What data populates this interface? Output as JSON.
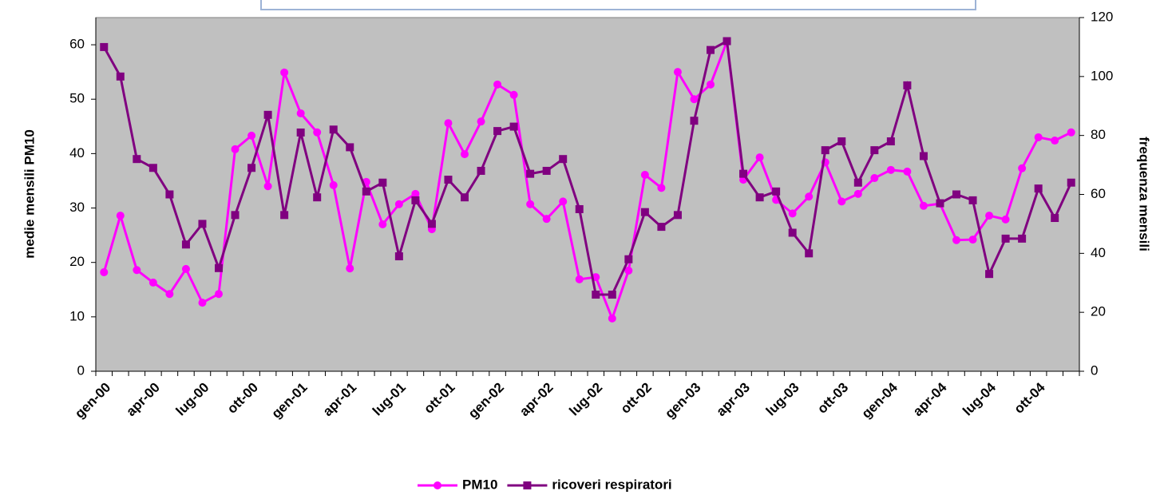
{
  "chart_data": {
    "type": "line",
    "y_label": "medie mensili PM10",
    "y2_label": "frequenza mensili",
    "categories": [
      "gen-00",
      null,
      null,
      "apr-00",
      null,
      null,
      "lug-00",
      null,
      null,
      "ott-00",
      null,
      null,
      "gen-01",
      null,
      null,
      "apr-01",
      null,
      null,
      "lug-01",
      null,
      null,
      "ott-01",
      null,
      null,
      "gen-02",
      null,
      null,
      "apr-02",
      null,
      null,
      "lug-02",
      null,
      null,
      "ott-02",
      null,
      null,
      "gen-03",
      null,
      null,
      "apr-03",
      null,
      null,
      "lug-03",
      null,
      null,
      "ott-03",
      null,
      null,
      "gen-04",
      null,
      null,
      "apr-04",
      null,
      null,
      "lug-04",
      null,
      null,
      "ott-04",
      null,
      null
    ],
    "series": [
      {
        "name": "PM10",
        "color": "#ff00ff",
        "marker": "circle",
        "values": [
          18.2,
          28.6,
          18.6,
          16.3,
          14.2,
          18.8,
          12.6,
          14.2,
          40.8,
          43.3,
          34,
          54.9,
          47.4,
          43.9,
          34.2,
          18.9,
          34.8,
          27,
          30.7,
          32.6,
          26.1,
          45.6,
          39.9,
          45.9,
          52.7,
          50.8,
          30.7,
          28,
          31.2,
          16.9,
          17.3,
          9.7,
          18.5,
          36.1,
          33.7,
          55,
          50,
          52.7,
          60.6,
          35.2,
          39.3,
          31.5,
          29,
          32.1,
          38.4,
          31.2,
          32.6,
          35.5,
          37,
          36.7,
          30.4,
          30.8,
          24.1,
          24.2,
          28.6,
          27.9,
          37.3,
          43,
          42.4,
          43.9
        ]
      },
      {
        "name": "ricoveri respiratori",
        "color": "#800080",
        "marker": "square",
        "axis": "y2",
        "values": [
          110,
          100,
          72,
          69,
          60,
          43,
          50,
          35,
          53,
          69,
          87,
          53,
          81,
          59,
          82,
          76,
          61,
          64,
          39,
          58,
          50,
          65,
          59,
          68,
          81.5,
          83,
          67,
          68,
          72,
          55,
          26,
          26,
          38,
          54,
          49,
          53,
          85,
          109,
          112,
          67,
          59,
          61,
          47,
          40,
          75,
          78,
          64,
          75,
          78,
          97,
          73,
          57,
          60,
          58,
          33,
          45,
          45,
          62,
          52,
          64
        ]
      }
    ],
    "ylim": [
      0,
      65
    ],
    "yticks": [
      0,
      10,
      20,
      30,
      40,
      50,
      60
    ],
    "y2lim": [
      0,
      120
    ],
    "y2ticks": [
      0,
      20,
      40,
      60,
      80,
      100,
      120
    ],
    "background": "#c0c0c0",
    "legend": "bottom"
  }
}
